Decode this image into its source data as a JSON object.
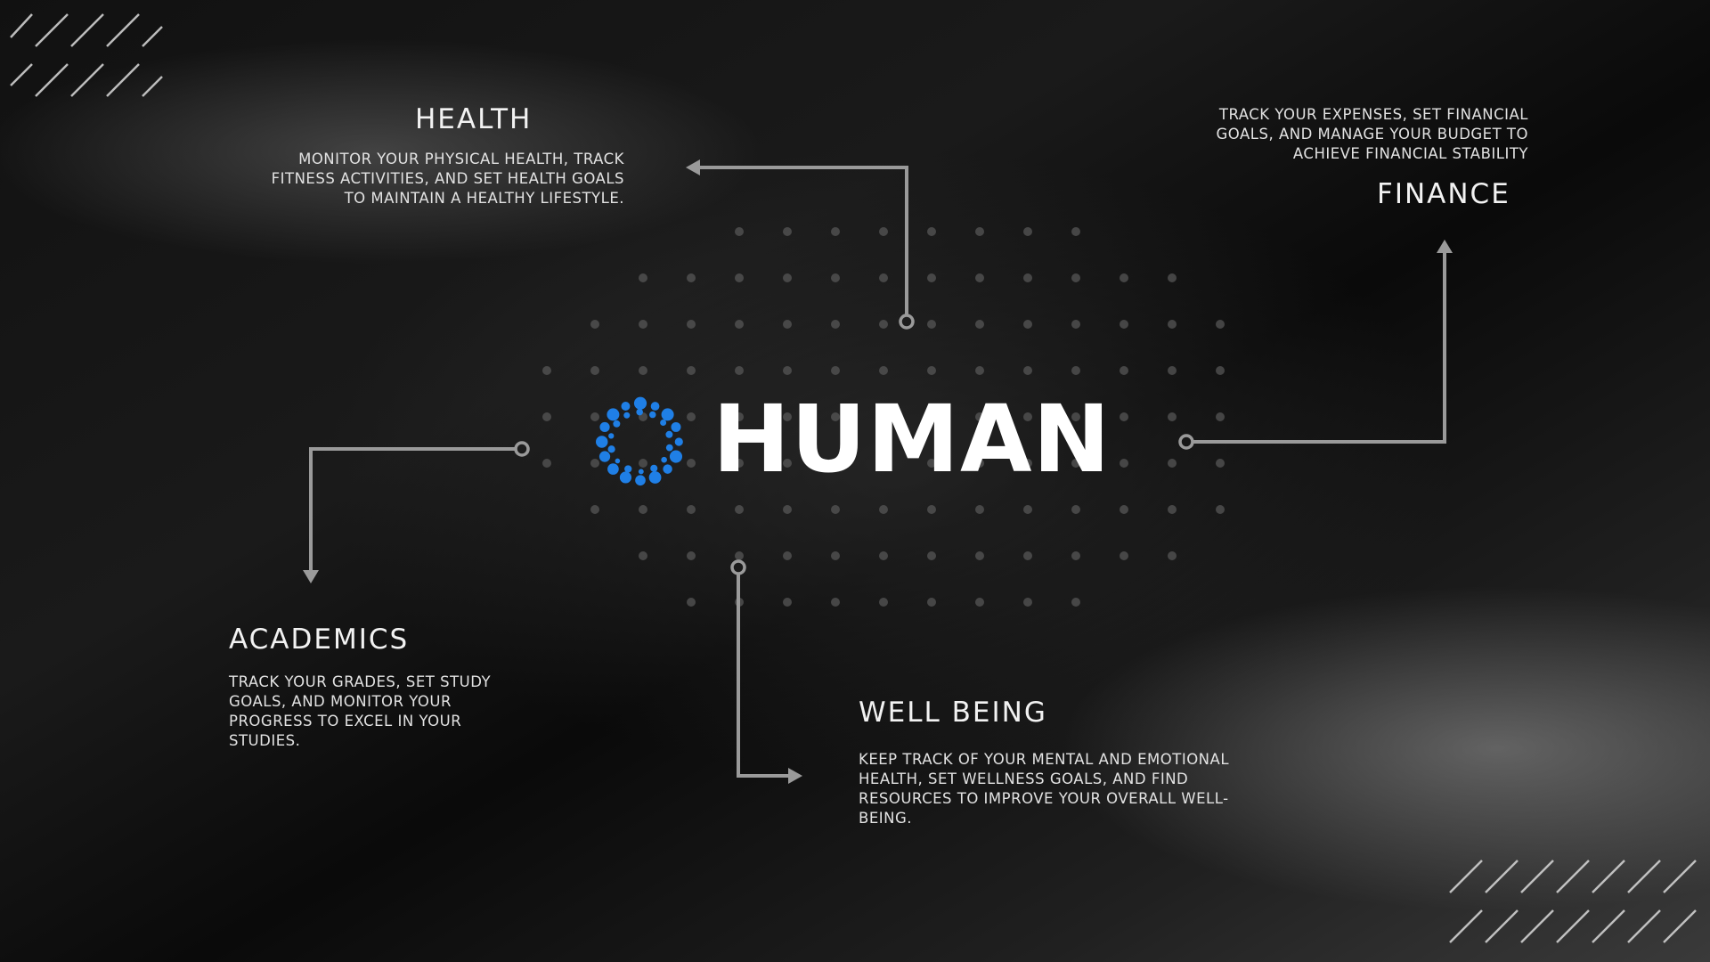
{
  "brand": {
    "name": "HUMAN",
    "accent_color": "#1f7fe6"
  },
  "nodes": {
    "health": {
      "title": "HEALTH",
      "description": "MONITOR YOUR PHYSICAL HEALTH, TRACK FITNESS ACTIVITIES, AND SET HEALTH GOALS TO MAINTAIN A HEALTHY LIFESTYLE."
    },
    "finance": {
      "title": "FINANCE",
      "description": "TRACK YOUR EXPENSES, SET FINANCIAL GOALS, AND MANAGE YOUR BUDGET TO ACHIEVE FINANCIAL STABILITY"
    },
    "academics": {
      "title": "ACADEMICS",
      "description": "TRACK YOUR GRADES, SET STUDY GOALS, AND MONITOR YOUR PROGRESS TO EXCEL IN YOUR STUDIES."
    },
    "wellbeing": {
      "title": "WELL BEING",
      "description": "KEEP TRACK OF YOUR MENTAL AND EMOTIONAL HEALTH, SET WELLNESS GOALS, AND FIND RESOURCES TO IMPROVE YOUR OVERALL WELL-BEING."
    }
  },
  "colors": {
    "connector": "#9a9a9a",
    "dots": "#5a5a5a",
    "hatch": "#cfcfcf"
  }
}
